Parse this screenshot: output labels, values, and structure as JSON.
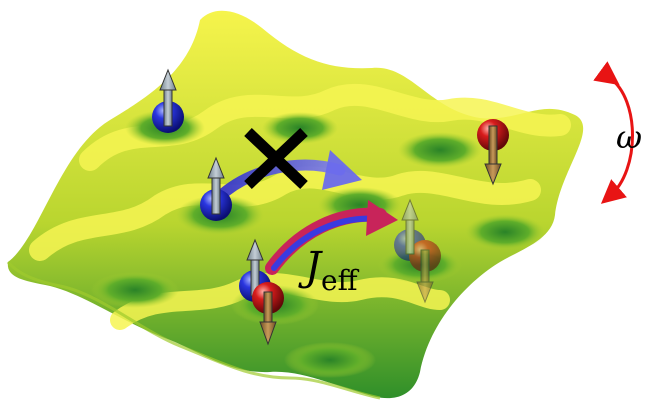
{
  "labels": {
    "coupling_symbol": "J",
    "coupling_subscript": "eff",
    "frequency_symbol": "ω"
  },
  "colors": {
    "lattice_peak": "#f4f24a",
    "lattice_mid": "#b6d42e",
    "lattice_valley": "#2f8f2a",
    "spin_up_particle": "#1a22c8",
    "spin_down_particle": "#c81414",
    "blocked_hop_arrow": "#5a5ae6",
    "allowed_hop_arrow_outer": "#c8245a",
    "allowed_hop_arrow_inner": "#3a3ae0",
    "drive_arrow": "#e81414",
    "cross_mark": "#000000",
    "spin_up_arrow": "#8a9aa6",
    "spin_down_arrow": "#8a6a3a"
  },
  "icons": {
    "blocked_marker": "cross-mark-icon",
    "spin_up": "up-arrow-icon",
    "spin_down": "down-arrow-icon",
    "drive": "curved-double-arrow-icon"
  }
}
